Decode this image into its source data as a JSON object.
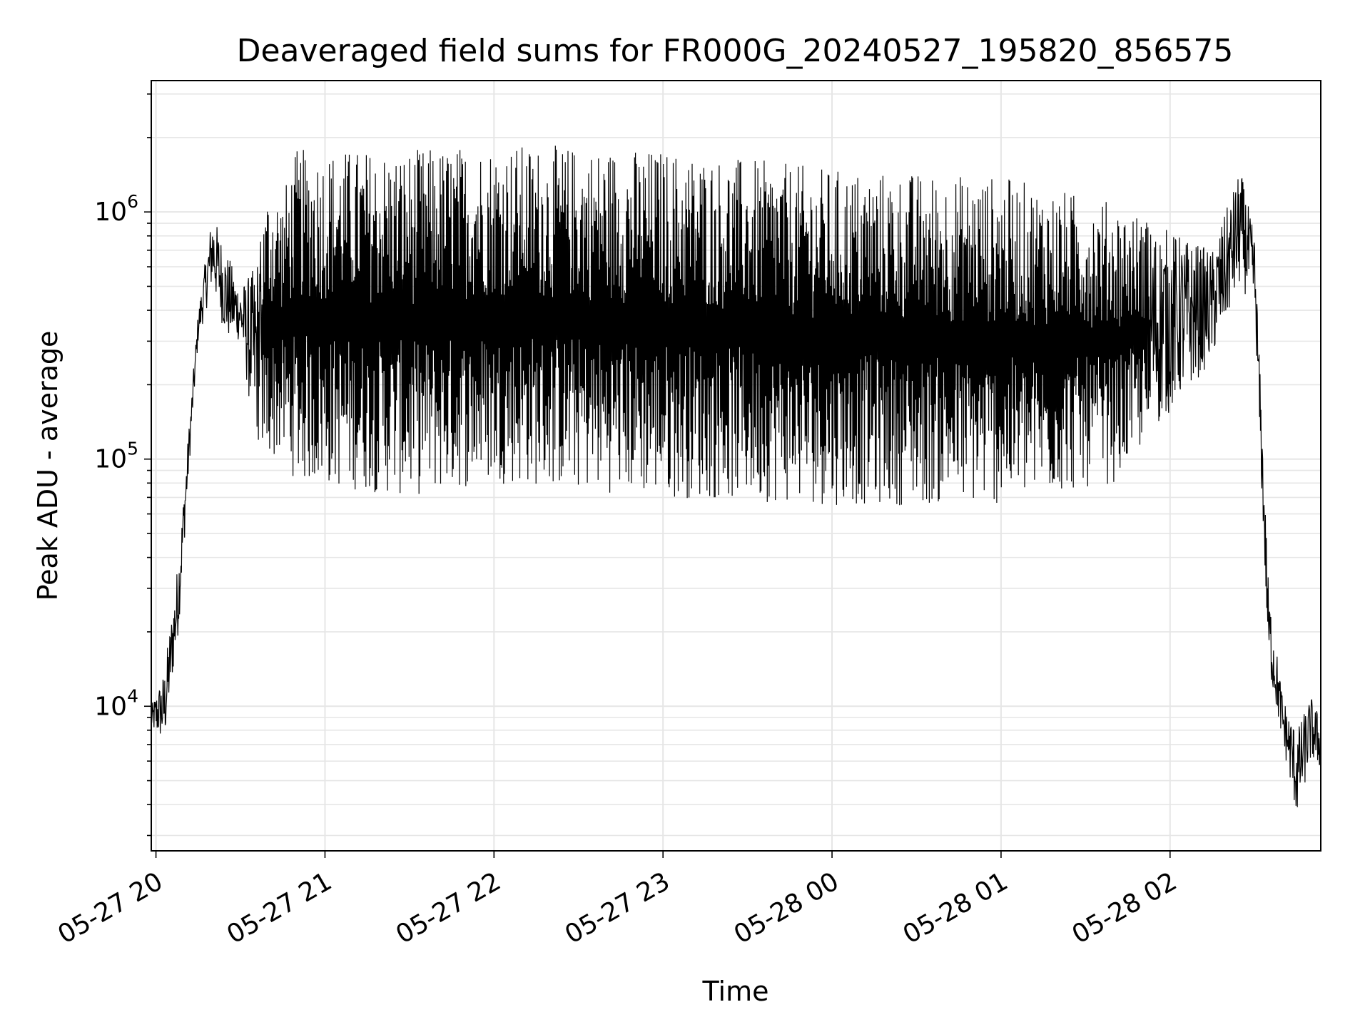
{
  "chart_data": {
    "type": "line",
    "title": "Deaveraged field sums for FR000G_20240527_195820_856575",
    "xlabel": "Time",
    "ylabel": "Peak ADU - average",
    "y_scale": "log",
    "ylim": [
      2600,
      3400000
    ],
    "xlim": [
      "2024-05-27 19:58:20",
      "2024-05-28 02:53:30"
    ],
    "x_ticks": [
      {
        "value": "2024-05-27 20:00",
        "label": "05-27 20"
      },
      {
        "value": "2024-05-27 21:00",
        "label": "05-27 21"
      },
      {
        "value": "2024-05-27 22:00",
        "label": "05-27 22"
      },
      {
        "value": "2024-05-27 23:00",
        "label": "05-27 23"
      },
      {
        "value": "2024-05-28 00:00",
        "label": "05-28 00"
      },
      {
        "value": "2024-05-28 01:00",
        "label": "05-28 01"
      },
      {
        "value": "2024-05-28 02:00",
        "label": "05-28 02"
      }
    ],
    "y_ticks": [
      {
        "value": 10000,
        "base": "10",
        "exp": "4"
      },
      {
        "value": 100000,
        "base": "10",
        "exp": "5"
      },
      {
        "value": 1000000,
        "base": "10",
        "exp": "6"
      }
    ],
    "grid": true,
    "line_color": "#000000",
    "grid_color": "#e6e6e6",
    "envelope": [
      {
        "t": "2024-05-27 19:58:20",
        "low": 8000,
        "high": 10000
      },
      {
        "t": "2024-05-27 20:03",
        "low": 7000,
        "high": 14000
      },
      {
        "t": "2024-05-27 20:08",
        "low": 20000,
        "high": 40000
      },
      {
        "t": "2024-05-27 20:12",
        "low": 100000,
        "high": 150000
      },
      {
        "t": "2024-05-27 20:15",
        "low": 300000,
        "high": 400000
      },
      {
        "t": "2024-05-27 20:20",
        "low": 500000,
        "high": 1000000
      },
      {
        "t": "2024-05-27 20:25",
        "low": 300000,
        "high": 700000
      },
      {
        "t": "2024-05-27 20:30",
        "low": 300000,
        "high": 500000
      },
      {
        "t": "2024-05-27 20:35",
        "low": 120000,
        "high": 600000
      },
      {
        "t": "2024-05-27 20:40",
        "low": 100000,
        "high": 1300000
      },
      {
        "t": "2024-05-27 20:45",
        "low": 100000,
        "high": 1200000
      },
      {
        "t": "2024-05-27 20:50",
        "low": 80000,
        "high": 1800000
      },
      {
        "t": "2024-05-27 21:30",
        "low": 70000,
        "high": 1800000
      },
      {
        "t": "2024-05-27 22:00",
        "low": 80000,
        "high": 1900000
      },
      {
        "t": "2024-05-27 23:00",
        "low": 70000,
        "high": 1800000
      },
      {
        "t": "2024-05-28 00:00",
        "low": 65000,
        "high": 1500000
      },
      {
        "t": "2024-05-28 01:00",
        "low": 65000,
        "high": 1400000
      },
      {
        "t": "2024-05-28 01:40",
        "low": 80000,
        "high": 1100000
      },
      {
        "t": "2024-05-28 02:15",
        "low": 250000,
        "high": 700000
      },
      {
        "t": "2024-05-28 02:25",
        "low": 500000,
        "high": 1500000
      },
      {
        "t": "2024-05-28 02:30",
        "low": 400000,
        "high": 800000
      },
      {
        "t": "2024-05-28 02:35",
        "low": 14000,
        "high": 30000
      },
      {
        "t": "2024-05-28 02:40",
        "low": 7000,
        "high": 11000
      },
      {
        "t": "2024-05-28 02:45",
        "low": 3500,
        "high": 8000
      },
      {
        "t": "2024-05-28 02:50",
        "low": 6000,
        "high": 11000
      },
      {
        "t": "2024-05-28 02:53:30",
        "low": 5500,
        "high": 9000
      }
    ]
  }
}
